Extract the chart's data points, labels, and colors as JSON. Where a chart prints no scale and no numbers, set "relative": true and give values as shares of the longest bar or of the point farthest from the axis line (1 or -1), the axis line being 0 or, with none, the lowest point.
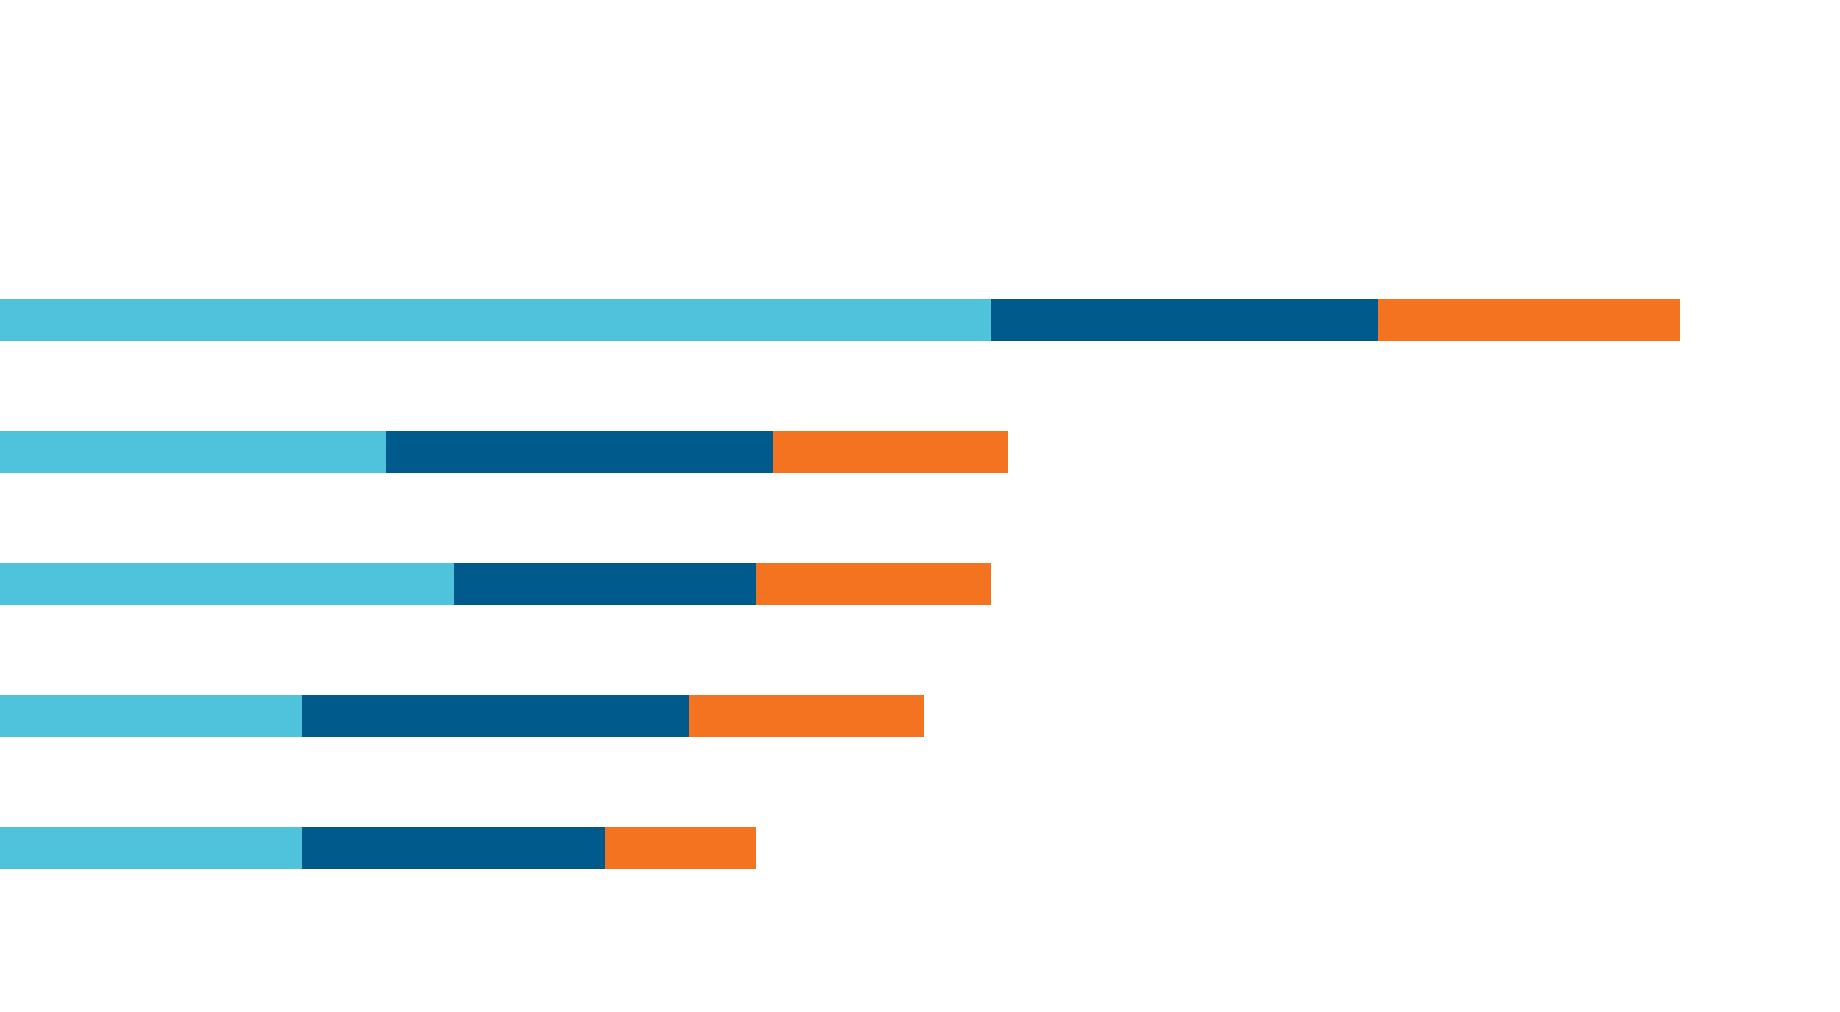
{
  "chart_data": {
    "type": "bar",
    "orientation": "horizontal",
    "stacked": true,
    "relative": true,
    "categories": [
      null,
      null,
      null,
      null,
      null
    ],
    "series": [
      {
        "color": "#4fc3dc",
        "values": [
          0.59,
          0.23,
          0.27,
          0.18,
          0.18
        ]
      },
      {
        "color": "#005a8c",
        "values": [
          0.23,
          0.23,
          0.18,
          0.23,
          0.18
        ]
      },
      {
        "color": "#f37321",
        "values": [
          0.18,
          0.14,
          0.14,
          0.14,
          0.09
        ]
      }
    ]
  }
}
